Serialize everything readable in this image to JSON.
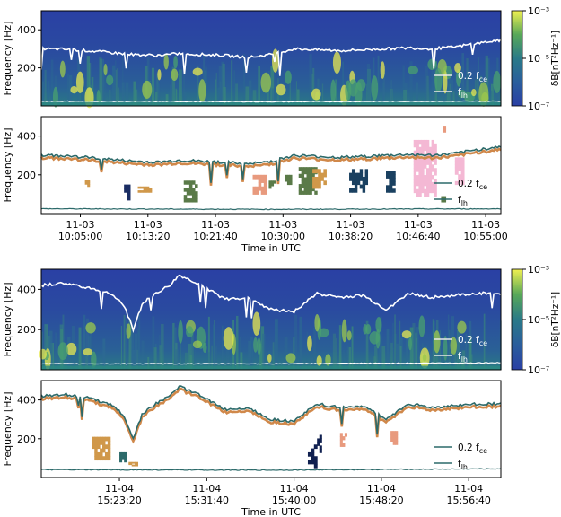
{
  "figure": {
    "y_label": "Frequency [Hz]",
    "x_label": "Time in UTC",
    "colorbar_label": "δB[nT²Hz⁻¹]",
    "colorbar_ticks": [
      "10⁻³",
      "10⁻⁵",
      "10⁻⁷"
    ],
    "legend_labels": [
      "0.2 f",
      "f"
    ],
    "legend_subscripts": [
      "ce",
      "lh"
    ]
  },
  "chart_data": [
    {
      "type": "heatmap",
      "title": "",
      "ylabel": "Frequency [Hz]",
      "ylim": [
        0,
        500
      ],
      "yticks": [
        200,
        400
      ],
      "xticks": [],
      "colorbar": {
        "label": "δB[nT²Hz⁻¹]",
        "scale": "log",
        "range": [
          1e-07,
          0.001
        ],
        "colormap": "viridis-like"
      },
      "lines": [
        {
          "name": "0.2 fce",
          "color": "#ffffff",
          "x": [
            0,
            5,
            10,
            15,
            20,
            25,
            30,
            35,
            40,
            45,
            50,
            55,
            60,
            65,
            70,
            75,
            80,
            85,
            90,
            95,
            100
          ],
          "y": [
            300,
            298,
            290,
            280,
            270,
            265,
            275,
            270,
            265,
            255,
            270,
            300,
            295,
            290,
            295,
            300,
            305,
            300,
            310,
            330,
            345
          ]
        },
        {
          "name": "flh",
          "color": "#ffffff",
          "x": [
            0,
            50,
            100
          ],
          "y": [
            25,
            22,
            25
          ]
        }
      ]
    },
    {
      "type": "scatter",
      "title": "",
      "ylabel": "Frequency [Hz]",
      "xlabel": "Time in UTC",
      "ylim": [
        0,
        500
      ],
      "yticks": [
        200,
        400
      ],
      "xticks": [
        {
          "date": "11-03",
          "time": "10:05:00"
        },
        {
          "date": "11-03",
          "time": "10:13:20"
        },
        {
          "date": "11-03",
          "time": "10:21:40"
        },
        {
          "date": "11-03",
          "time": "10:30:00"
        },
        {
          "date": "11-03",
          "time": "10:38:20"
        },
        {
          "date": "11-03",
          "time": "10:46:40"
        },
        {
          "date": "11-03",
          "time": "10:55:00"
        }
      ],
      "lines": [
        {
          "name": "0.2 fce",
          "color": "#2c6a6a",
          "x": [
            0,
            5,
            10,
            15,
            20,
            25,
            30,
            35,
            40,
            45,
            50,
            55,
            60,
            65,
            70,
            75,
            80,
            85,
            90,
            95,
            100
          ],
          "y": [
            300,
            298,
            290,
            280,
            270,
            265,
            275,
            270,
            265,
            255,
            270,
            300,
            295,
            290,
            295,
            300,
            305,
            300,
            310,
            330,
            345
          ]
        },
        {
          "name": "flh",
          "color": "#2c6a6a",
          "x": [
            0,
            50,
            100
          ],
          "y": [
            25,
            22,
            25
          ]
        }
      ],
      "clusters": [
        {
          "x": [
            9.5,
            10.5
          ],
          "y": [
            140,
            175
          ],
          "color": "#d0984a"
        },
        {
          "x": [
            18,
            20
          ],
          "y": [
            70,
            150
          ],
          "color": "#1a2d63"
        },
        {
          "x": [
            21,
            24
          ],
          "y": [
            110,
            140
          ],
          "color": "#d0984a"
        },
        {
          "x": [
            31,
            34
          ],
          "y": [
            60,
            170
          ],
          "color": "#5a7a48"
        },
        {
          "x": [
            46,
            49
          ],
          "y": [
            100,
            200
          ],
          "color": "#e89a7e"
        },
        {
          "x": [
            49.5,
            51
          ],
          "y": [
            130,
            170
          ],
          "color": "#5a7a48"
        },
        {
          "x": [
            53,
            54.5
          ],
          "y": [
            150,
            200
          ],
          "color": "#5a7a48"
        },
        {
          "x": [
            56,
            60
          ],
          "y": [
            100,
            240
          ],
          "color": "#5a7a48"
        },
        {
          "x": [
            59,
            62
          ],
          "y": [
            130,
            230
          ],
          "color": "#d0984a"
        },
        {
          "x": [
            67,
            71
          ],
          "y": [
            110,
            230
          ],
          "color": "#1a4060"
        },
        {
          "x": [
            75,
            77
          ],
          "y": [
            110,
            220
          ],
          "color": "#1a4060"
        },
        {
          "x": [
            75.5,
            76.5
          ],
          "y": [
            280,
            300
          ],
          "color": "#5a7a48"
        },
        {
          "x": [
            81,
            86
          ],
          "y": [
            90,
            380
          ],
          "color": "#f4b8d4"
        },
        {
          "x": [
            87,
            88
          ],
          "y": [
            60,
            90
          ],
          "color": "#5a7a48"
        },
        {
          "x": [
            90,
            92
          ],
          "y": [
            150,
            290
          ],
          "color": "#f4b8d4"
        },
        {
          "x": [
            87.5,
            88.5
          ],
          "y": [
            420,
            470
          ],
          "color": "#e89a7e"
        }
      ]
    },
    {
      "type": "heatmap",
      "title": "",
      "ylabel": "Frequency [Hz]",
      "ylim": [
        0,
        500
      ],
      "yticks": [
        200,
        400
      ],
      "xticks": [],
      "colorbar": {
        "label": "δB[nT²Hz⁻¹]",
        "scale": "log",
        "range": [
          1e-07,
          0.001
        ],
        "colormap": "viridis-like"
      },
      "lines": [
        {
          "name": "0.2 fce",
          "color": "#ffffff",
          "x": [
            0,
            5,
            10,
            15,
            18,
            20,
            22,
            25,
            28,
            30,
            35,
            40,
            45,
            50,
            55,
            60,
            65,
            70,
            75,
            80,
            85,
            90,
            95,
            100
          ],
          "y": [
            420,
            430,
            410,
            380,
            320,
            200,
            330,
            380,
            420,
            470,
            420,
            350,
            360,
            300,
            290,
            380,
            360,
            370,
            300,
            380,
            360,
            370,
            380,
            380
          ]
        },
        {
          "name": "flh",
          "color": "#ffffff",
          "x": [
            0,
            50,
            100
          ],
          "y": [
            30,
            30,
            35
          ]
        }
      ]
    },
    {
      "type": "scatter",
      "title": "",
      "ylabel": "Frequency [Hz]",
      "xlabel": "Time in UTC",
      "ylim": [
        0,
        500
      ],
      "yticks": [
        200,
        400
      ],
      "xticks": [
        {
          "date": "11-04",
          "time": "15:23:20"
        },
        {
          "date": "11-04",
          "time": "15:31:40"
        },
        {
          "date": "11-04",
          "time": "15:40:00"
        },
        {
          "date": "11-04",
          "time": "15:48:20"
        },
        {
          "date": "11-04",
          "time": "15:56:40"
        }
      ],
      "lines": [
        {
          "name": "0.2 fce",
          "color": "#2c6a6a",
          "x": [
            0,
            5,
            10,
            15,
            18,
            20,
            22,
            25,
            28,
            30,
            35,
            40,
            45,
            50,
            55,
            60,
            65,
            70,
            75,
            80,
            85,
            90,
            95,
            100
          ],
          "y": [
            420,
            430,
            410,
            380,
            320,
            200,
            330,
            380,
            420,
            470,
            420,
            350,
            360,
            300,
            290,
            380,
            360,
            370,
            300,
            380,
            360,
            370,
            380,
            380
          ]
        },
        {
          "name": "flh",
          "color": "#2c6a6a",
          "x": [
            0,
            50,
            100
          ],
          "y": [
            40,
            38,
            45
          ]
        }
      ],
      "clusters": [
        {
          "x": [
            11,
            15
          ],
          "y": [
            90,
            210
          ],
          "color": "#d0984a"
        },
        {
          "x": [
            17,
            18.5
          ],
          "y": [
            80,
            130
          ],
          "color": "#2c6a6a"
        },
        {
          "x": [
            19,
            21
          ],
          "y": [
            60,
            80
          ],
          "color": "#d0984a"
        },
        {
          "x": [
            58,
            60
          ],
          "y": [
            50,
            170
          ],
          "color": "#102050"
        },
        {
          "x": [
            60,
            61
          ],
          "y": [
            110,
            220
          ],
          "color": "#102050"
        },
        {
          "x": [
            65,
            66.5
          ],
          "y": [
            160,
            230
          ],
          "color": "#e89a7e"
        },
        {
          "x": [
            76,
            77.5
          ],
          "y": [
            170,
            240
          ],
          "color": "#e89a7e"
        }
      ]
    }
  ]
}
